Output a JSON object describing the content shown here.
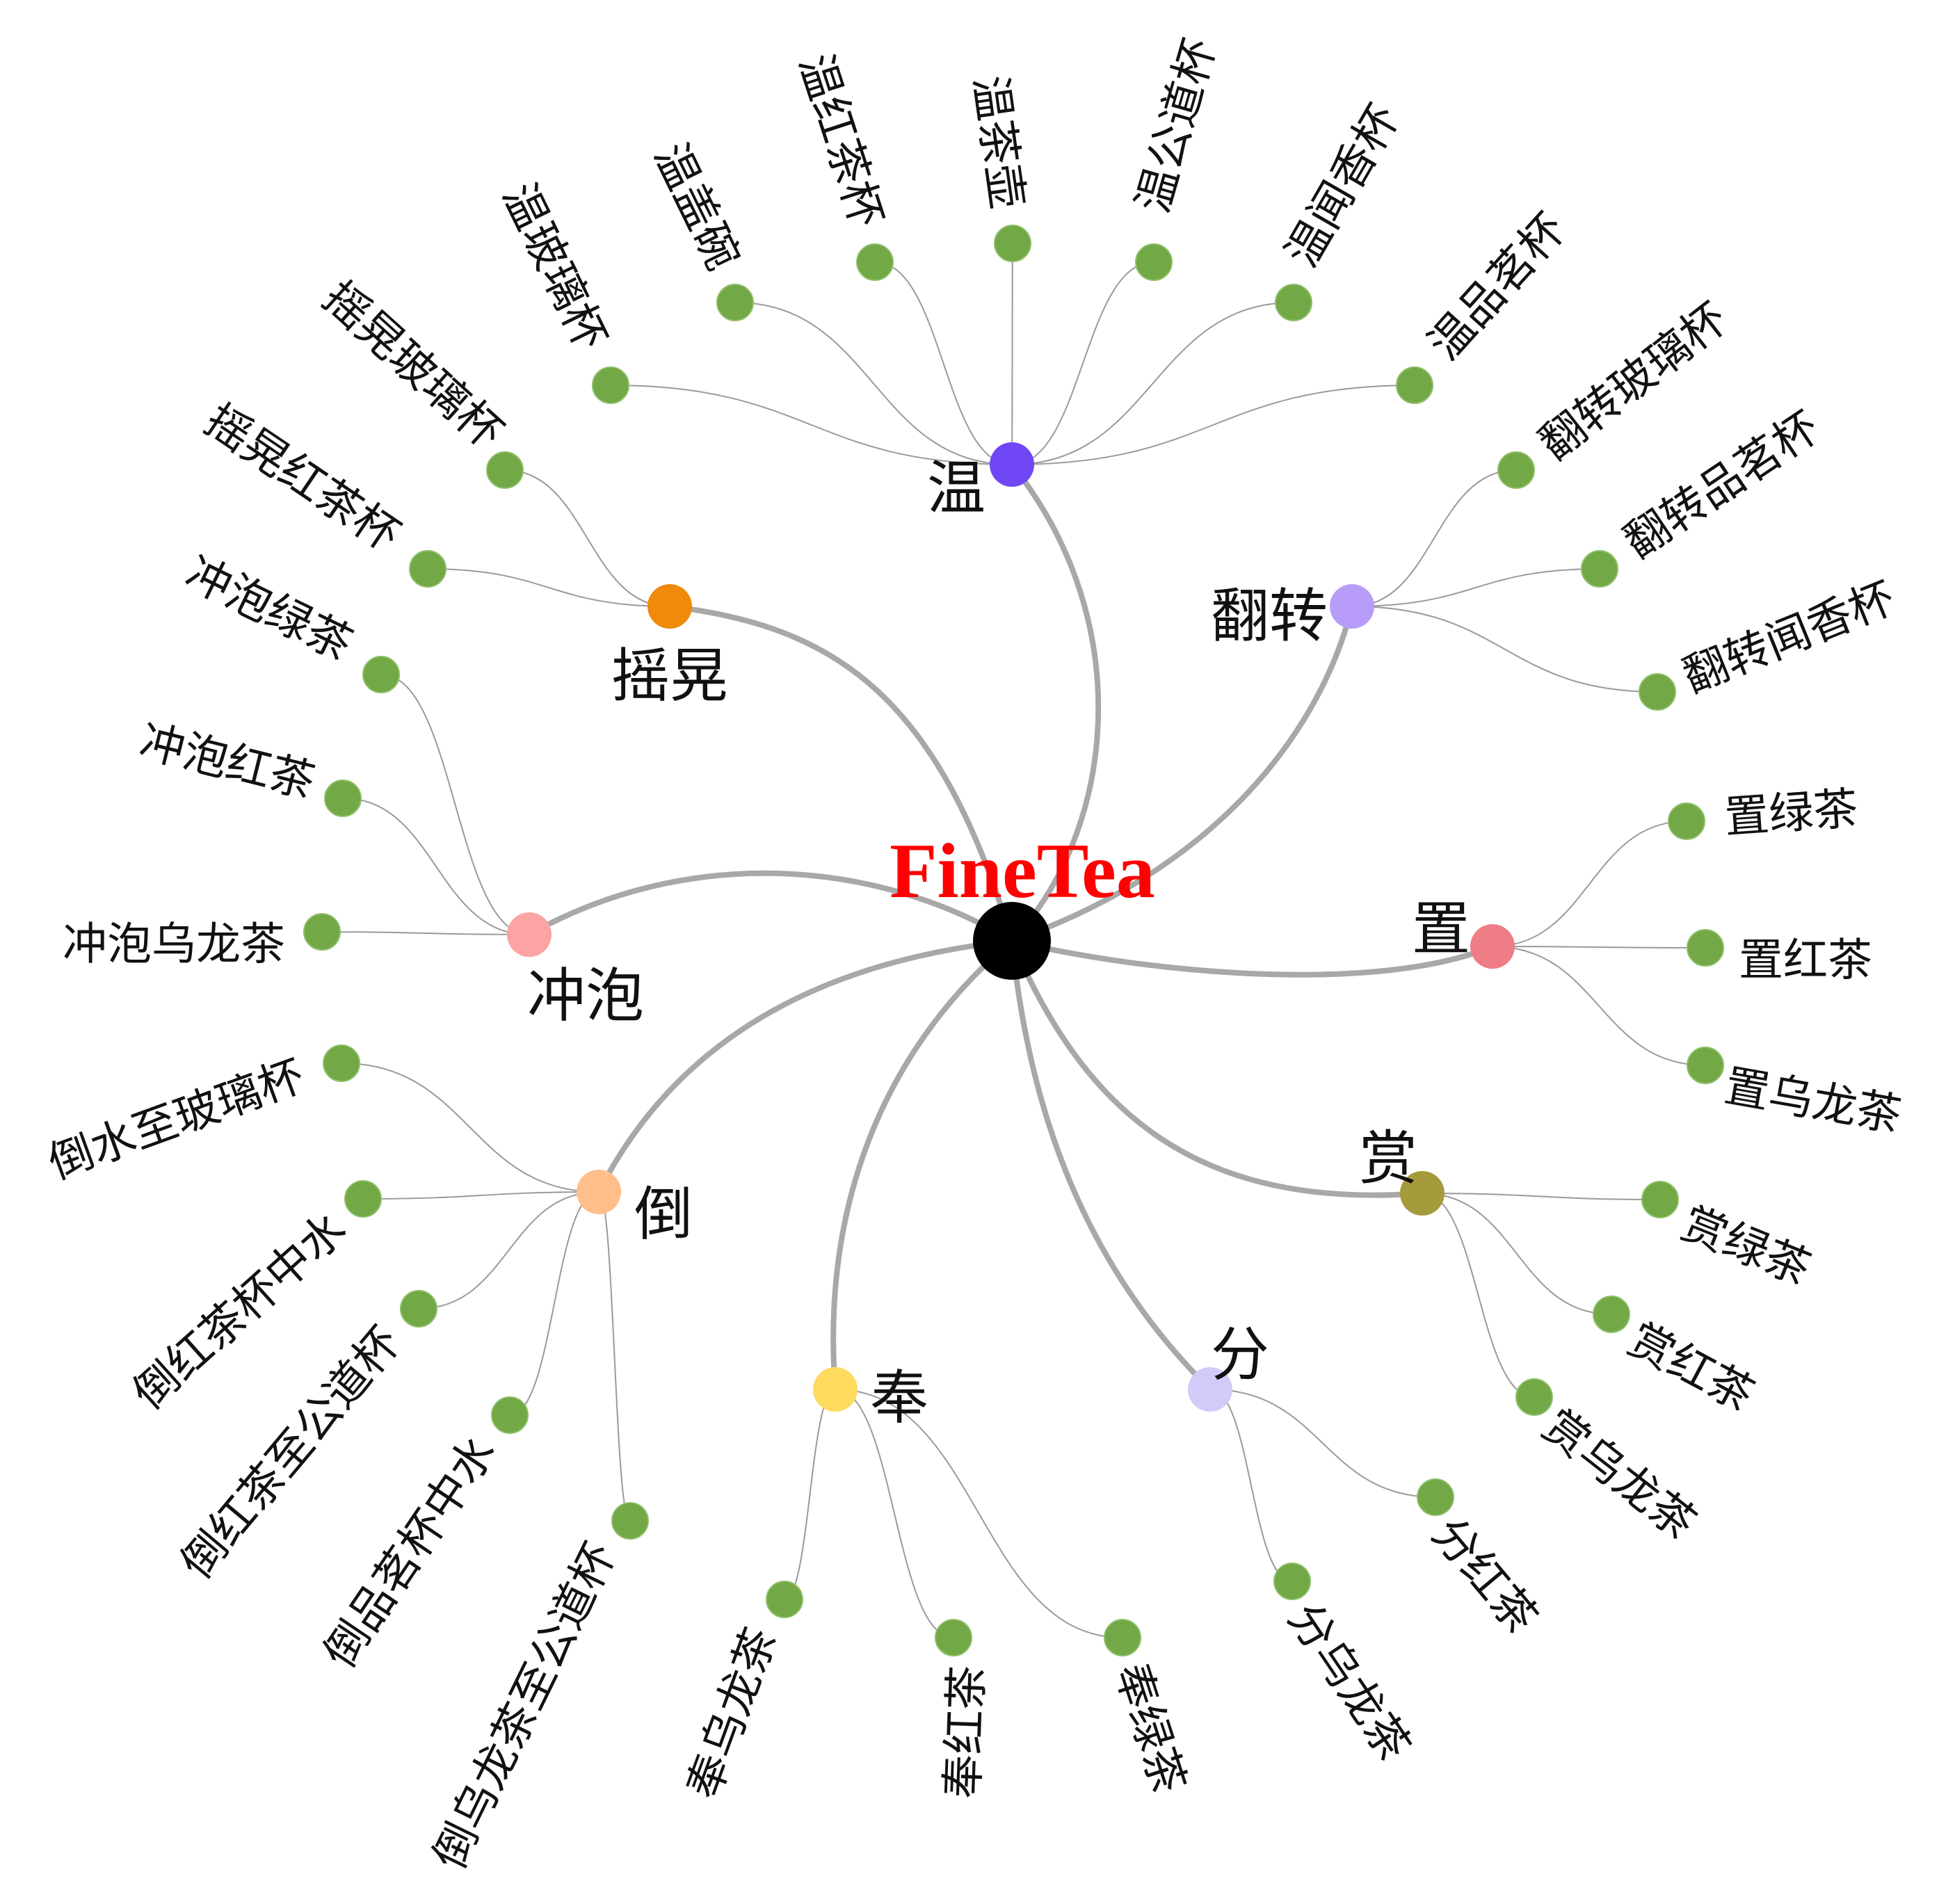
{
  "root": {
    "label": "FineTea",
    "color": "#ff0000",
    "dot_color": "#000000"
  },
  "leaf_color": "#72a845",
  "leaf_highlight_color": "#4fe0d8",
  "categories": [
    {
      "id": "wen",
      "label": "温",
      "color": "#6f47f5",
      "leaves": [
        "温玻璃杯",
        "温盖碗",
        "温红茶杯",
        "温茶壶",
        "温公道杯",
        "温闻香杯",
        "温品茗杯"
      ]
    },
    {
      "id": "fanzhuan",
      "label": "翻转",
      "color": "#b89cfa",
      "leaves": [
        "翻转玻璃杯",
        "翻转品茗杯",
        "翻转闻香杯"
      ]
    },
    {
      "id": "zhi",
      "label": "置",
      "color": "#ef7d86",
      "leaves": [
        "置绿茶",
        "置红茶",
        "置乌龙茶"
      ]
    },
    {
      "id": "shang",
      "label": "赏",
      "color": "#a59a3c",
      "leaves": [
        "赏绿茶",
        "赏红茶",
        "赏乌龙茶"
      ]
    },
    {
      "id": "fen",
      "label": "分",
      "color": "#d2cbf9",
      "leaves": [
        "分红茶",
        "分乌龙茶"
      ]
    },
    {
      "id": "feng",
      "label": "奉",
      "color": "#fedb5d",
      "leaves": [
        "奉乌龙茶",
        "奉红茶",
        "奉绿茶"
      ]
    },
    {
      "id": "dao",
      "label": "倒",
      "color": "#ffbe8a",
      "leaves": [
        "倒水至玻璃杯",
        "倒红茶杯中水",
        "倒红茶至公道杯",
        "倒品茗杯中水",
        "倒乌龙茶至公道杯"
      ]
    },
    {
      "id": "chongpao",
      "label": "冲泡",
      "color": "#fca3a3",
      "leaves": [
        "冲泡绿茶",
        "冲泡红茶",
        "冲泡乌龙茶"
      ]
    },
    {
      "id": "yaohuang",
      "label": "摇晃",
      "color": "#ef8a0b",
      "leaves": [
        "摇晃玻璃杯",
        "摇晃红茶杯"
      ]
    }
  ]
}
